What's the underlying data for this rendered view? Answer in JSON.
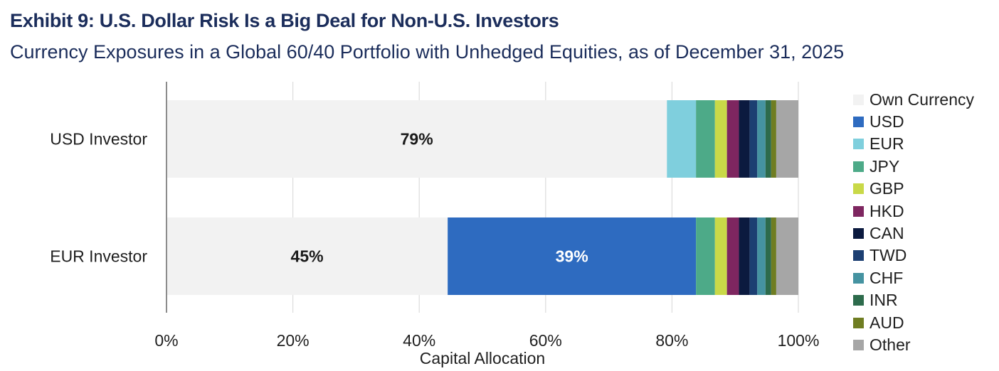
{
  "title": "Exhibit 9: U.S. Dollar Risk Is a Big Deal for Non-U.S. Investors",
  "subtitle": "Currency Exposures in a Global 60/40 Portfolio with Unhedged Equities, as of December 31, 2025",
  "chart_data": {
    "type": "bar",
    "orientation": "horizontal",
    "stacked": true,
    "title": "Exhibit 9: U.S. Dollar Risk Is a Big Deal for Non-U.S. Investors",
    "subtitle": "Currency Exposures in a Global 60/40 Portfolio with Unhedged Equities, as of December 31, 2025",
    "xlabel": "Capital Allocation",
    "ylabel": "",
    "xlim": [
      0,
      100
    ],
    "xticks": [
      "0%",
      "20%",
      "40%",
      "60%",
      "80%",
      "100%"
    ],
    "grid": true,
    "legend_position": "right",
    "categories": [
      "USD Investor",
      "EUR Investor"
    ],
    "series": [
      {
        "name": "Own Currency",
        "color": "#f2f2f2",
        "values": [
          79.2,
          44.5
        ],
        "labels": [
          "79%",
          "45%"
        ],
        "label_color": "#1a1a1a"
      },
      {
        "name": "USD",
        "color": "#2e6bc0",
        "values": [
          0,
          39.3
        ],
        "labels": [
          "",
          "39%"
        ],
        "label_color": "#ffffff"
      },
      {
        "name": "EUR",
        "color": "#7fcfdd",
        "values": [
          4.6,
          0
        ],
        "labels": [
          "",
          ""
        ]
      },
      {
        "name": "JPY",
        "color": "#4daa88",
        "values": [
          3.0,
          3.0
        ],
        "labels": [
          "",
          ""
        ]
      },
      {
        "name": "GBP",
        "color": "#c9d948",
        "values": [
          1.9,
          1.9
        ],
        "labels": [
          "",
          ""
        ]
      },
      {
        "name": "HKD",
        "color": "#7e2660",
        "values": [
          1.9,
          1.9
        ],
        "labels": [
          "",
          ""
        ]
      },
      {
        "name": "CAN",
        "color": "#0b1a3f",
        "values": [
          1.7,
          1.7
        ],
        "labels": [
          "",
          ""
        ]
      },
      {
        "name": "TWD",
        "color": "#1c3f72",
        "values": [
          1.2,
          1.2
        ],
        "labels": [
          "",
          ""
        ]
      },
      {
        "name": "CHF",
        "color": "#4593a1",
        "values": [
          1.3,
          1.3
        ],
        "labels": [
          "",
          ""
        ]
      },
      {
        "name": "INR",
        "color": "#2d6b4c",
        "values": [
          0.9,
          0.9
        ],
        "labels": [
          "",
          ""
        ]
      },
      {
        "name": "AUD",
        "color": "#6f7d22",
        "values": [
          0.8,
          0.8
        ],
        "labels": [
          "",
          ""
        ]
      },
      {
        "name": "Other",
        "color": "#a6a6a6",
        "values": [
          3.5,
          3.5
        ],
        "labels": [
          "",
          ""
        ]
      }
    ]
  }
}
